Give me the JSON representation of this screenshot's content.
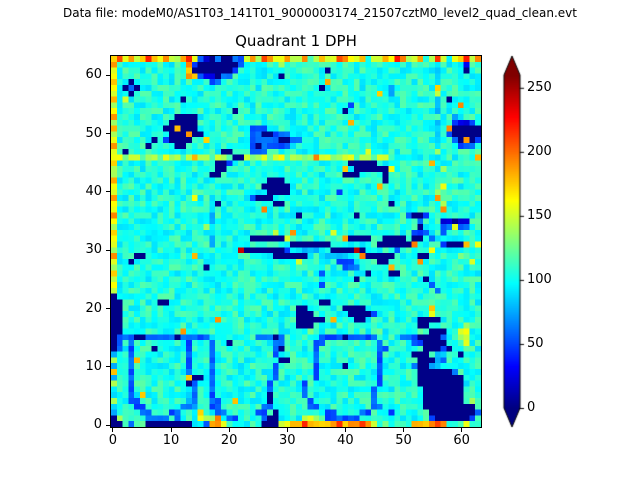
{
  "header": {
    "text": "Data file: modeM0/AS1T03_141T01_9000003174_21507cztM0_level2_quad_clean.evt"
  },
  "title": "Quadrant 1 DPH",
  "axes": {
    "x_ticks": [
      0,
      10,
      20,
      30,
      40,
      50,
      60
    ],
    "y_ticks": [
      0,
      10,
      20,
      30,
      40,
      50,
      60
    ]
  },
  "colorbar": {
    "ticks": [
      0,
      50,
      100,
      150,
      200,
      250
    ],
    "vmin": 0,
    "vmax": 260,
    "extend": "both",
    "colormap": "jet",
    "under_color": "#000080",
    "over_color": "#800000"
  },
  "chart_data": {
    "type": "heatmap",
    "title": "Quadrant 1 DPH",
    "grid_size": 64,
    "x_range": [
      0,
      63
    ],
    "y_range": [
      0,
      63
    ],
    "colormap": "jet",
    "vmin": 0,
    "vmax": 260,
    "legend_position": "right",
    "grid": false,
    "value_key": {
      ".": 105,
      "g": 122,
      "c": 85,
      "b": 55,
      "B": 25,
      "N": 2,
      "y": 150,
      "o": 185,
      "r": 215,
      "R": 245
    },
    "noise_by_class": {
      ".": 16,
      "g": 12,
      "c": 12,
      "y": 14,
      "b": 10,
      "o": 12,
      "r": 8,
      "B": 5,
      "N": 0,
      "R": 5
    },
    "rows_top_to_bottom": [
      "oryoyoroyoyyorybBNbNNbbyoyroyyoyyo.yoyyroyyo.yyoyroyyo.yry.yoryo",
      "o............obNNNNNNNb......y..........................c....B..o",
      "y............oNNNNNNNb...............N..................c....N..y",
      "y............oobBBNbb........N..........................c.......o",
      "o..N.............bb..................o..................c.......y",
      "y.NbN...............................N...........c.......o",
      "y..N..........................................o.c.......y",
      "o.y.........N...........................................c.N.....o",
      "y........................................b..............c...o...y",
      "y....................N..................N...............c.......o",
      "o.......…NNNN............................................c.......y",
      "y.........NNNNN..........................o..............c..bBBb.o",
      "o........NNoNNN.........bbb.............................c.oNNNNNb",
      "y.........NNNoNN........bbNNbbb.........................c.bNNNNNB",
      "y......N.bNNNN..o.......bbbbbNNbb.......................c..bNoNby",
      "o.....N....NN...........bNbbbbb.........................c...bbb.y",
      "y.N................NN...bbb.................y...........y",
      "yygyygyygyyygyoyygyygNNygyygyygyygyoyygyyygyygyyg......c.......o",
      "o.................NNb....................NNNNN.c.......o",
      "y.................NN....................o.NNNNNNy........y",
      "y................NN.....................NNN....N......",
      "o..........................NNN.................N...........g",
      "y.........................NNNNN...............o..........y",
      "y..........................NNNN........b................y",
      "o.............y..c......bNNN............................o",
      "y................cN.........NN..................N........y",
      "y................c........o..............................o",
      "o................c..............N.........N........bNNb...",
      "y................c...................................b...BBNBB..",
      "y...............yc...................................N...bbybb..",
      "o................c..........y..o......y.............bbb..b",
      "y................c......NNNNNNy.........oNNNN..NNNN.NN.b",
      "y................c.............NNNNNNN........NNNNNNo....bNNNo.y",
      "y.....................RNNNNNNNb.cccc..NNNNRN.....b.....y",
      "o...NN........o.............NNNNNN..cccccc.oNNNNN....NN.....g",
      "y..N............................y......bbb....NN.....o........y",
      "y...............N.......................bbb.....o..............",
      "o...................................b.......N...NN......",
      "y.........................................N...........N..",
      "y...................................b..................b",
      "y.......................................................b",
      "N.......................................................",
      "NN......NN..........................NN.................",
      "NN..............................NN......NNNN...........o",
      "NN..............................NNN......NNNNb.........y",
      "NN................o.............NNNNN.o...NN.........NNNN.....",
      "NN..............................NNN......g...........NN......y",
      "NN..........o.....................g..g...g.g..g......g.NNN..yy..",
      "NbbbNNbbbbbNbbbbb........bbbNb......bbbbNbbbbb....bbbNNNNb..yy..",
      "Nb.b.........b...b..N.......bb.....bb.........b.....bbNNNN...y..",
      "Nb.b...N.....b...b..........bN.....b..........bb......NNNbN.....",
      "c..b.........b...b..........b......b......g...b.....NNN.cc..N..",
      "y..bo........b...b...........NN....b..........b......NNNcb.....",
      "c..b.........b...b..........b......b....N.....b.....bNNcc......",
      "o..b.........b...b..........b......b..........b......NNNNNNb...",
      "c..b.........oNN.b..........b......b..........b......NNNNNNNN..",
      "y..b.........Nb..b.........b.....b............b......NNNNNNNNc.",
      "c..b.........cb..b.........b.....b...........b........NNNNNNN..",
      "c..b.o.......cb..b.........N.....b...........b........NNNNNNN..",
      "y..bb........cb..bb..o.....N......b..........b........NNNNNNN.y",
      "c...bb......bbc..bb.......bb......bb.........bb.......NNNNNNNNN.",
      "c....bb...bb...o..bb.....bb.N........bb....bb...b......NNNNNNNNb",
      "Ny....bbbb.b...yyyo.bb....bNN....yyy.bbbbbb............bNNNNNNb.",
      "NN.b.gNNNNNNNNccbooy......NNNyyooroooooroooroy.g..g.ooooro...y"
    ]
  }
}
